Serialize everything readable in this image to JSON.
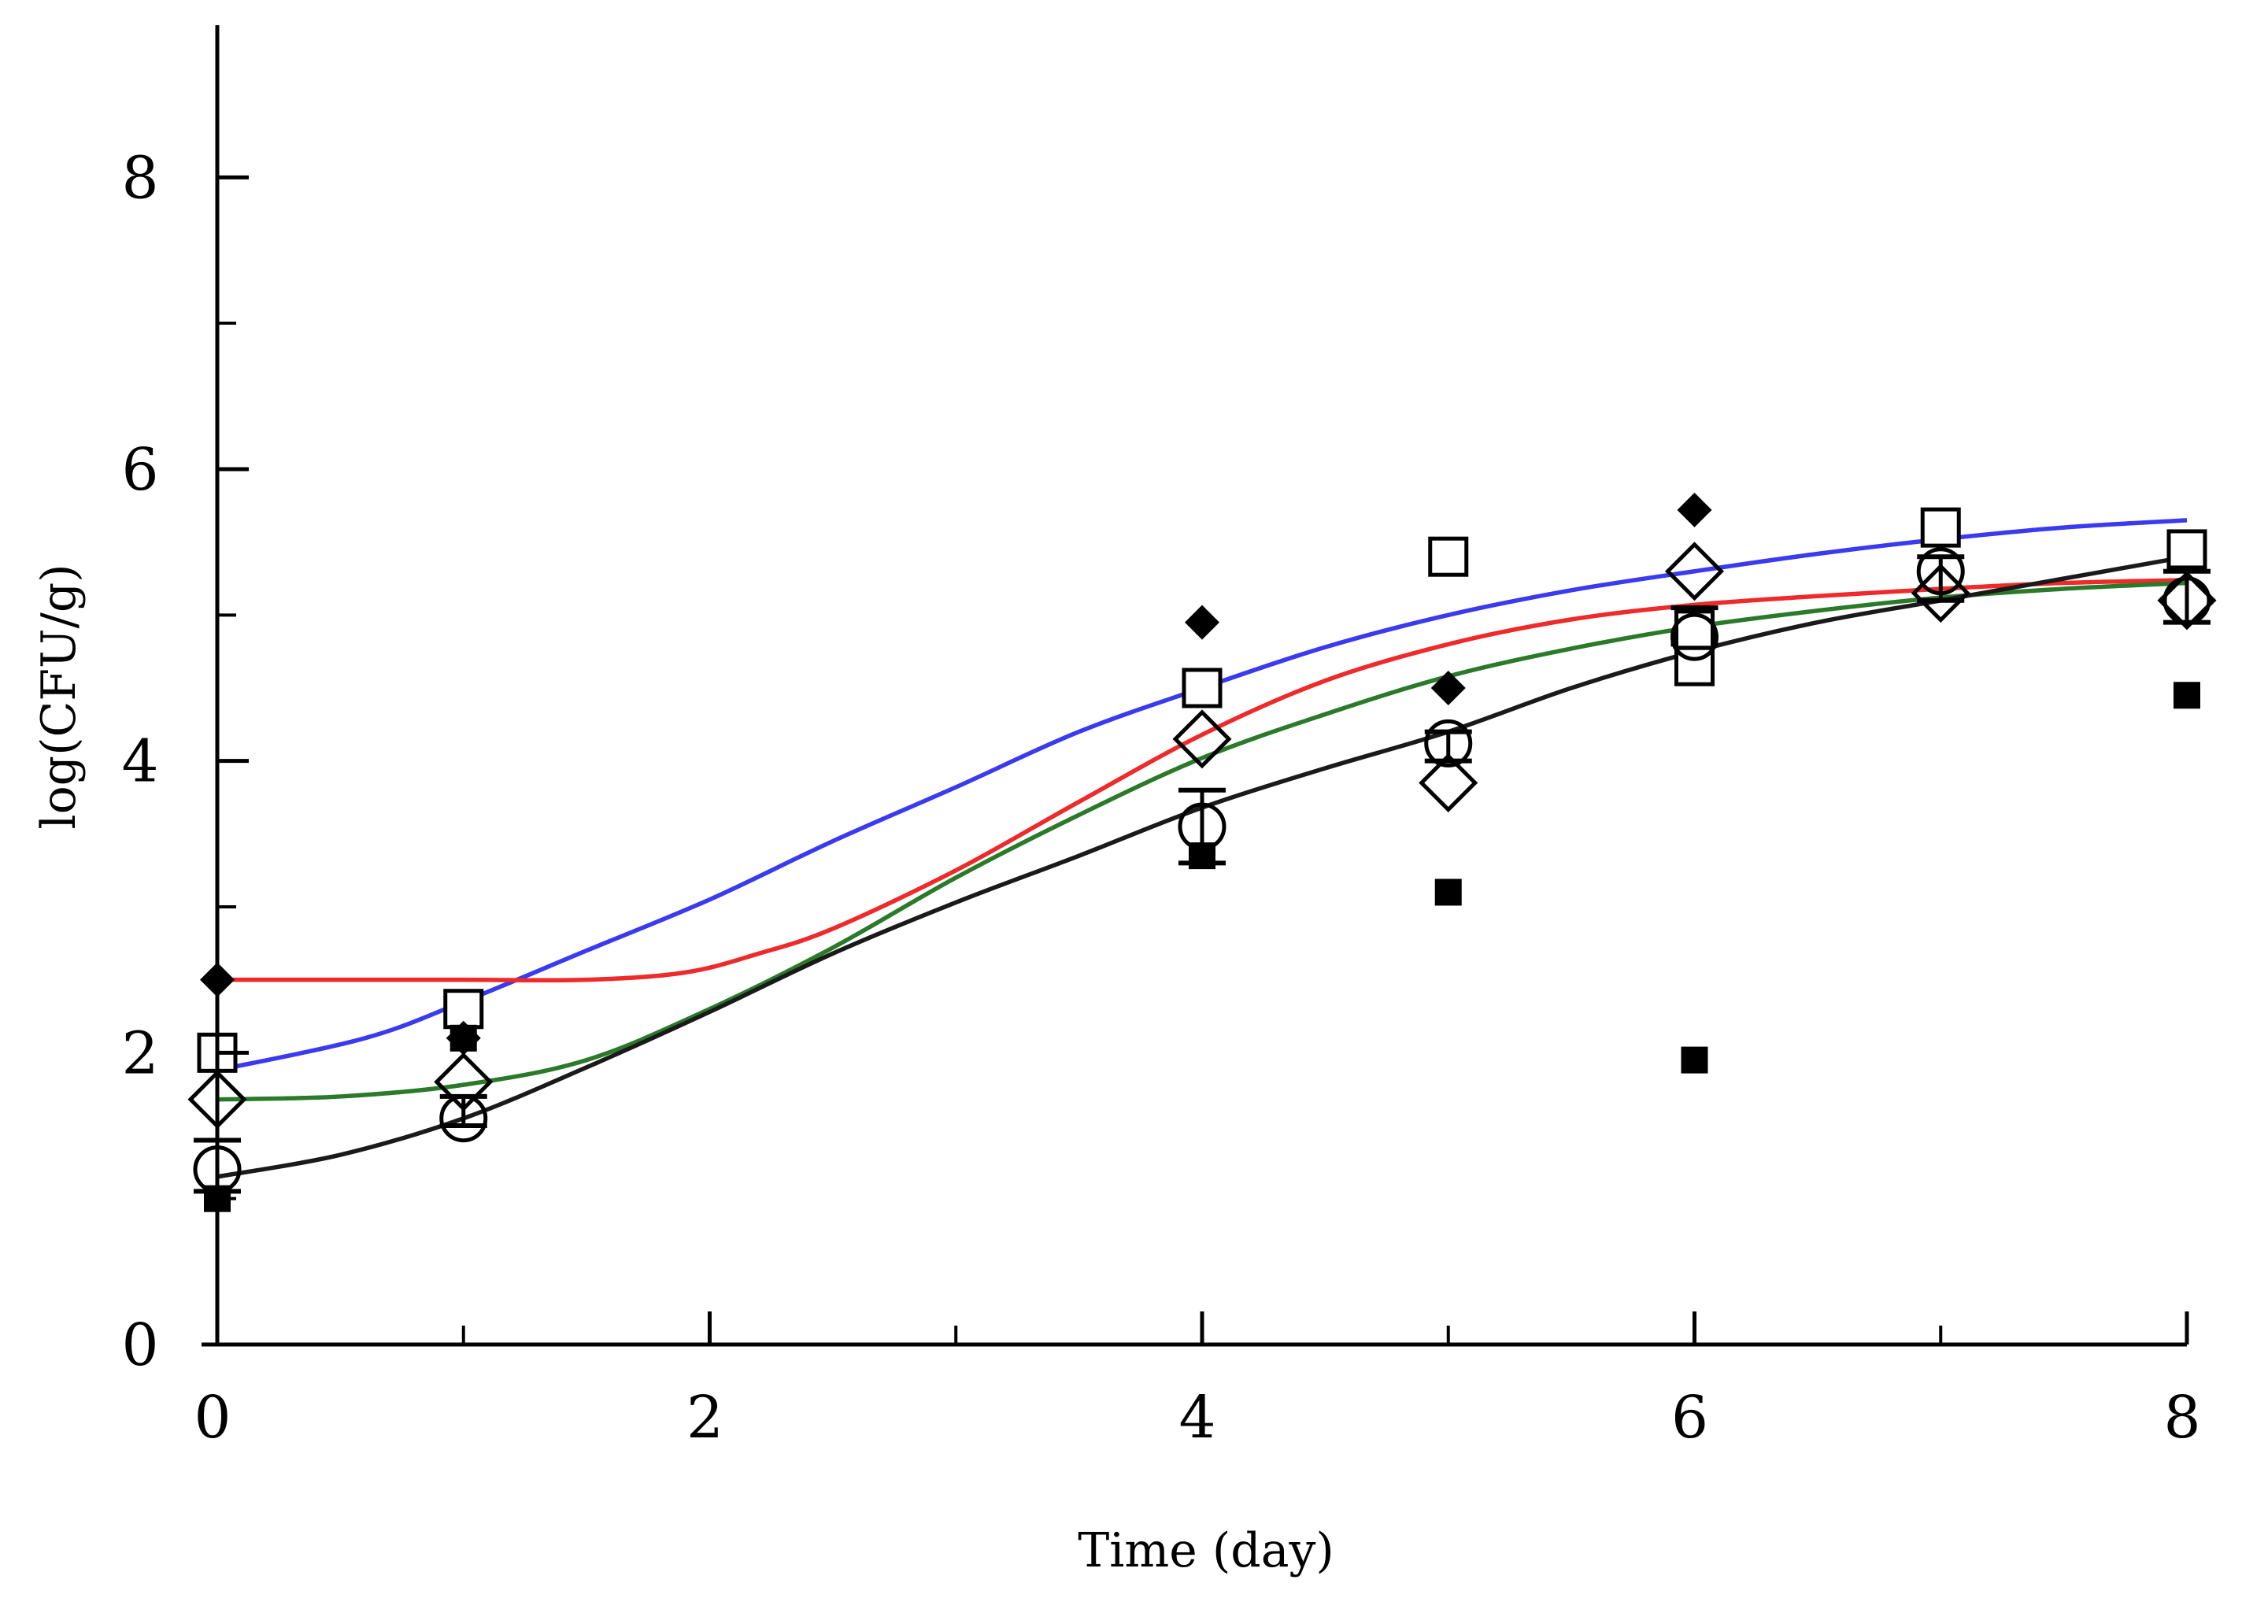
{
  "chart_data": {
    "type": "scatter",
    "title": "",
    "xlabel": "Time (day)",
    "ylabel": "log(CFU/g)",
    "xlim": [
      0,
      8
    ],
    "ylim": [
      0,
      9
    ],
    "x_major_ticks": [
      0,
      2,
      4,
      6,
      8
    ],
    "x_minor_ticks": [
      1,
      3,
      5,
      7
    ],
    "y_major_ticks": [
      0,
      2,
      4,
      6,
      8
    ],
    "y_minor_ticks": [
      1,
      3,
      5,
      7
    ],
    "x_tick_labels": [
      "0",
      "2",
      "4",
      "6",
      "8"
    ],
    "y_tick_labels": [
      "0",
      "2",
      "4",
      "6",
      "8"
    ],
    "grid": false,
    "legend": null,
    "fitted_curves": [
      {
        "name": "blue-fit",
        "color": "#3a3af0",
        "x": [
          0,
          0.6,
          1,
          1.5,
          2,
          2.5,
          3,
          3.5,
          4,
          4.5,
          5,
          5.5,
          6,
          6.5,
          7,
          7.5,
          8
        ],
        "y": [
          1.88,
          2.1,
          2.35,
          2.7,
          3.05,
          3.45,
          3.82,
          4.2,
          4.5,
          4.78,
          5.0,
          5.17,
          5.3,
          5.42,
          5.52,
          5.6,
          5.65
        ]
      },
      {
        "name": "red-fit",
        "color": "#ee2a2a",
        "x": [
          0,
          0.5,
          1,
          1.5,
          1.9,
          2.2,
          2.5,
          3,
          3.5,
          4,
          4.5,
          5,
          5.5,
          6,
          6.5,
          7,
          7.5,
          8
        ],
        "y": [
          2.5,
          2.5,
          2.5,
          2.5,
          2.55,
          2.68,
          2.85,
          3.25,
          3.72,
          4.18,
          4.55,
          4.8,
          4.97,
          5.07,
          5.13,
          5.18,
          5.22,
          5.24
        ]
      },
      {
        "name": "green-fit",
        "color": "#2a7a2a",
        "x": [
          0,
          0.5,
          1,
          1.5,
          2,
          2.5,
          3,
          3.5,
          4,
          4.5,
          5,
          5.5,
          6,
          6.5,
          7,
          7.5,
          8
        ],
        "y": [
          1.68,
          1.7,
          1.78,
          1.95,
          2.3,
          2.72,
          3.2,
          3.63,
          4.02,
          4.32,
          4.58,
          4.77,
          4.92,
          5.03,
          5.12,
          5.18,
          5.22
        ]
      },
      {
        "name": "black-fit",
        "color": "#1a1a1a",
        "x": [
          0,
          0.5,
          1,
          1.5,
          2,
          2.5,
          3,
          3.5,
          4,
          4.5,
          5,
          5.5,
          6,
          6.5,
          7,
          7.5,
          8
        ],
        "y": [
          1.15,
          1.3,
          1.55,
          1.9,
          2.28,
          2.68,
          3.03,
          3.35,
          3.68,
          3.95,
          4.2,
          4.5,
          4.75,
          4.95,
          5.1,
          5.25,
          5.4
        ]
      }
    ],
    "series": [
      {
        "name": "open-squares",
        "marker": "open-square",
        "x": [
          0,
          1,
          4,
          5,
          6,
          6,
          7,
          8
        ],
        "y": [
          2.0,
          2.3,
          4.5,
          5.4,
          4.65,
          4.9,
          5.6,
          5.45
        ]
      },
      {
        "name": "filled-squares",
        "marker": "filled-square",
        "x": [
          0,
          1,
          4,
          5,
          6,
          8
        ],
        "y": [
          1.0,
          2.1,
          3.35,
          3.1,
          1.95,
          4.45
        ]
      },
      {
        "name": "open-diamonds",
        "marker": "open-diamond",
        "x": [
          0,
          1,
          4,
          5,
          6,
          7,
          8
        ],
        "y": [
          1.68,
          1.8,
          4.15,
          3.85,
          5.3,
          5.15,
          5.1
        ]
      },
      {
        "name": "filled-diamonds",
        "marker": "filled-diamond",
        "x": [
          0,
          1,
          4,
          5,
          6
        ],
        "y": [
          2.5,
          2.1,
          4.95,
          4.5,
          5.72
        ]
      },
      {
        "name": "open-circles",
        "marker": "open-circle",
        "x": [
          0,
          1,
          4,
          5,
          6,
          7,
          8
        ],
        "y": [
          1.2,
          1.55,
          3.55,
          4.12,
          4.85,
          5.3,
          5.1
        ]
      }
    ],
    "error_bars": [
      {
        "x": 0,
        "low": 1.05,
        "high": 1.4
      },
      {
        "x": 1,
        "low": 1.5,
        "high": 1.7
      },
      {
        "x": 4,
        "low": 3.3,
        "high": 3.8
      },
      {
        "x": 5,
        "low": 4.0,
        "high": 4.2
      },
      {
        "x": 6,
        "low": 4.8,
        "high": 5.05
      },
      {
        "x": 7,
        "low": 5.1,
        "high": 5.4
      },
      {
        "x": 8,
        "low": 4.95,
        "high": 5.3
      }
    ]
  }
}
